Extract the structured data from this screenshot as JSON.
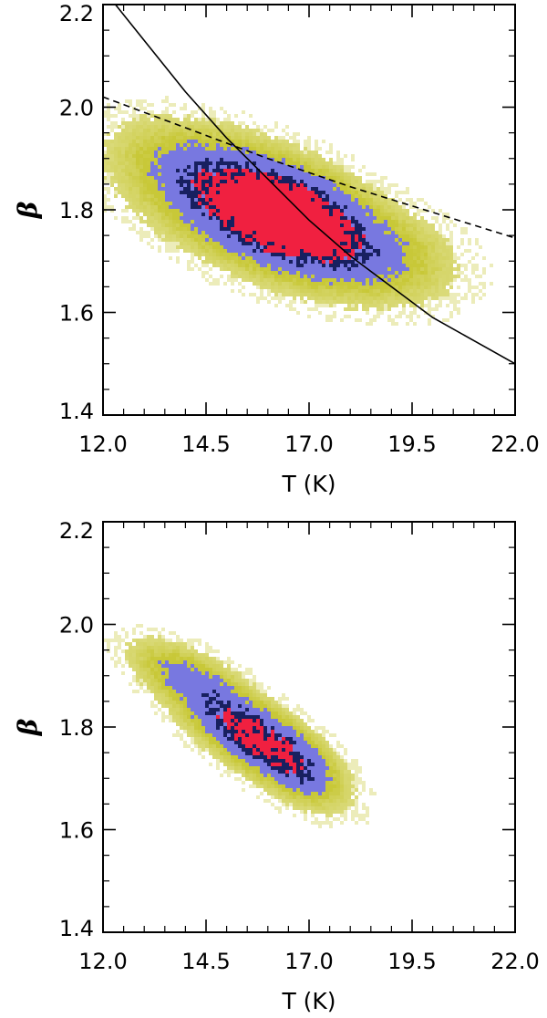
{
  "chart_data": [
    {
      "type": "heatmap",
      "title": "",
      "xlabel": "T (K)",
      "ylabel": "β",
      "xlim": [
        12.0,
        22.0
      ],
      "ylim": [
        1.4,
        2.2
      ],
      "x_ticks": [
        "12.0",
        "14.5",
        "17.0",
        "19.5",
        "22.0"
      ],
      "y_ticks": [
        "1.4",
        "1.6",
        "1.8",
        "2.0",
        "2.2"
      ],
      "grid": false,
      "colors": {
        "outer": "#c8c838",
        "middle": "#7878e0",
        "inner": "#182060",
        "peak": "#f02040",
        "line": "#000000"
      },
      "density_blobs": [
        {
          "x": 16.2,
          "y": 1.78,
          "sx": 1.6,
          "sy": 0.07,
          "rho": -0.55,
          "w": 1.0
        },
        {
          "x": 16.6,
          "y": 1.79,
          "sx": 0.9,
          "sy": 0.05,
          "rho": -0.3,
          "w": 0.6
        },
        {
          "x": 15.0,
          "y": 1.86,
          "sx": 1.4,
          "sy": 0.06,
          "rho": -0.5,
          "w": 0.35
        },
        {
          "x": 18.5,
          "y": 1.72,
          "sx": 1.2,
          "sy": 0.05,
          "rho": -0.3,
          "w": 0.2
        }
      ],
      "curves": [
        {
          "style": "solid",
          "x": [
            12.3,
            13.0,
            14.0,
            15.0,
            16.0,
            17.0,
            18.0,
            19.0,
            20.0,
            21.0,
            22.0
          ],
          "y": [
            2.2,
            2.13,
            2.03,
            1.94,
            1.86,
            1.78,
            1.71,
            1.65,
            1.59,
            1.545,
            1.5
          ]
        },
        {
          "style": "dashed",
          "x": [
            12.0,
            14.0,
            16.0,
            18.0,
            20.0,
            22.0
          ],
          "y": [
            2.02,
            1.96,
            1.9,
            1.845,
            1.795,
            1.745
          ]
        }
      ]
    },
    {
      "type": "heatmap",
      "title": "",
      "xlabel": "T (K)",
      "ylabel": "β",
      "xlim": [
        12.0,
        22.0
      ],
      "ylim": [
        1.4,
        2.2
      ],
      "x_ticks": [
        "12.0",
        "14.5",
        "17.0",
        "19.5",
        "22.0"
      ],
      "y_ticks": [
        "1.4",
        "1.6",
        "1.8",
        "2.0",
        "2.2"
      ],
      "grid": false,
      "colors": {
        "outer": "#c8c838",
        "middle": "#7878e0",
        "inner": "#182060",
        "peak": "#f02040",
        "line": "#000000"
      },
      "density_blobs": [
        {
          "x": 15.7,
          "y": 1.78,
          "sx": 1.0,
          "sy": 0.06,
          "rho": -0.75,
          "w": 1.0
        },
        {
          "x": 14.0,
          "y": 1.9,
          "sx": 0.8,
          "sy": 0.04,
          "rho": -0.6,
          "w": 0.3
        },
        {
          "x": 16.8,
          "y": 1.72,
          "sx": 0.5,
          "sy": 0.04,
          "rho": -0.4,
          "w": 0.25
        }
      ],
      "curves": []
    }
  ]
}
